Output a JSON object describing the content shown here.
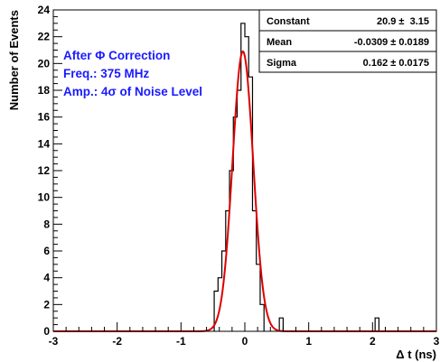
{
  "chart_data": {
    "type": "histogram",
    "xlabel": "Δ t (ns)",
    "ylabel": "Number of Events",
    "xlim": [
      -3,
      3
    ],
    "ylim": [
      0,
      24
    ],
    "x_ticks": [
      -3,
      -2,
      -1,
      0,
      1,
      2,
      3
    ],
    "y_ticks": [
      0,
      2,
      4,
      6,
      8,
      10,
      12,
      14,
      16,
      18,
      20,
      22,
      24
    ],
    "bin_width": 0.06,
    "bins": [
      {
        "x_low": -0.48,
        "x_high": -0.42,
        "count": 3
      },
      {
        "x_low": -0.42,
        "x_high": -0.36,
        "count": 4
      },
      {
        "x_low": -0.36,
        "x_high": -0.3,
        "count": 6
      },
      {
        "x_low": -0.3,
        "x_high": -0.24,
        "count": 9
      },
      {
        "x_low": -0.24,
        "x_high": -0.18,
        "count": 12
      },
      {
        "x_low": -0.18,
        "x_high": -0.12,
        "count": 16
      },
      {
        "x_low": -0.12,
        "x_high": -0.06,
        "count": 18
      },
      {
        "x_low": -0.06,
        "x_high": 0.0,
        "count": 23
      },
      {
        "x_low": 0.0,
        "x_high": 0.06,
        "count": 22
      },
      {
        "x_low": 0.06,
        "x_high": 0.12,
        "count": 19
      },
      {
        "x_low": 0.12,
        "x_high": 0.18,
        "count": 9
      },
      {
        "x_low": 0.18,
        "x_high": 0.24,
        "count": 5
      },
      {
        "x_low": 0.24,
        "x_high": 0.3,
        "count": 2
      },
      {
        "x_low": 0.54,
        "x_high": 0.6,
        "count": 1
      },
      {
        "x_low": 2.04,
        "x_high": 2.1,
        "count": 1
      }
    ],
    "fit": {
      "function": "gaussian",
      "color": "#dd0000",
      "constant": 20.9,
      "mean": -0.0309,
      "sigma": 0.162
    },
    "stats_box": {
      "rows": [
        {
          "name": "Constant",
          "value": "20.9 ±  3.15"
        },
        {
          "name": "Mean",
          "value": "-0.0309 ± 0.0189"
        },
        {
          "name": "Sigma",
          "value": "0.162 ± 0.0175"
        }
      ]
    },
    "annotations": [
      {
        "text": "After Φ Correction",
        "color": "#1a1aff"
      },
      {
        "text": "Freq.: 375 MHz",
        "color": "#1a1aff"
      },
      {
        "text": "Amp.: 4σ of Noise Level",
        "color": "#1a1aff"
      }
    ],
    "grid": false
  }
}
